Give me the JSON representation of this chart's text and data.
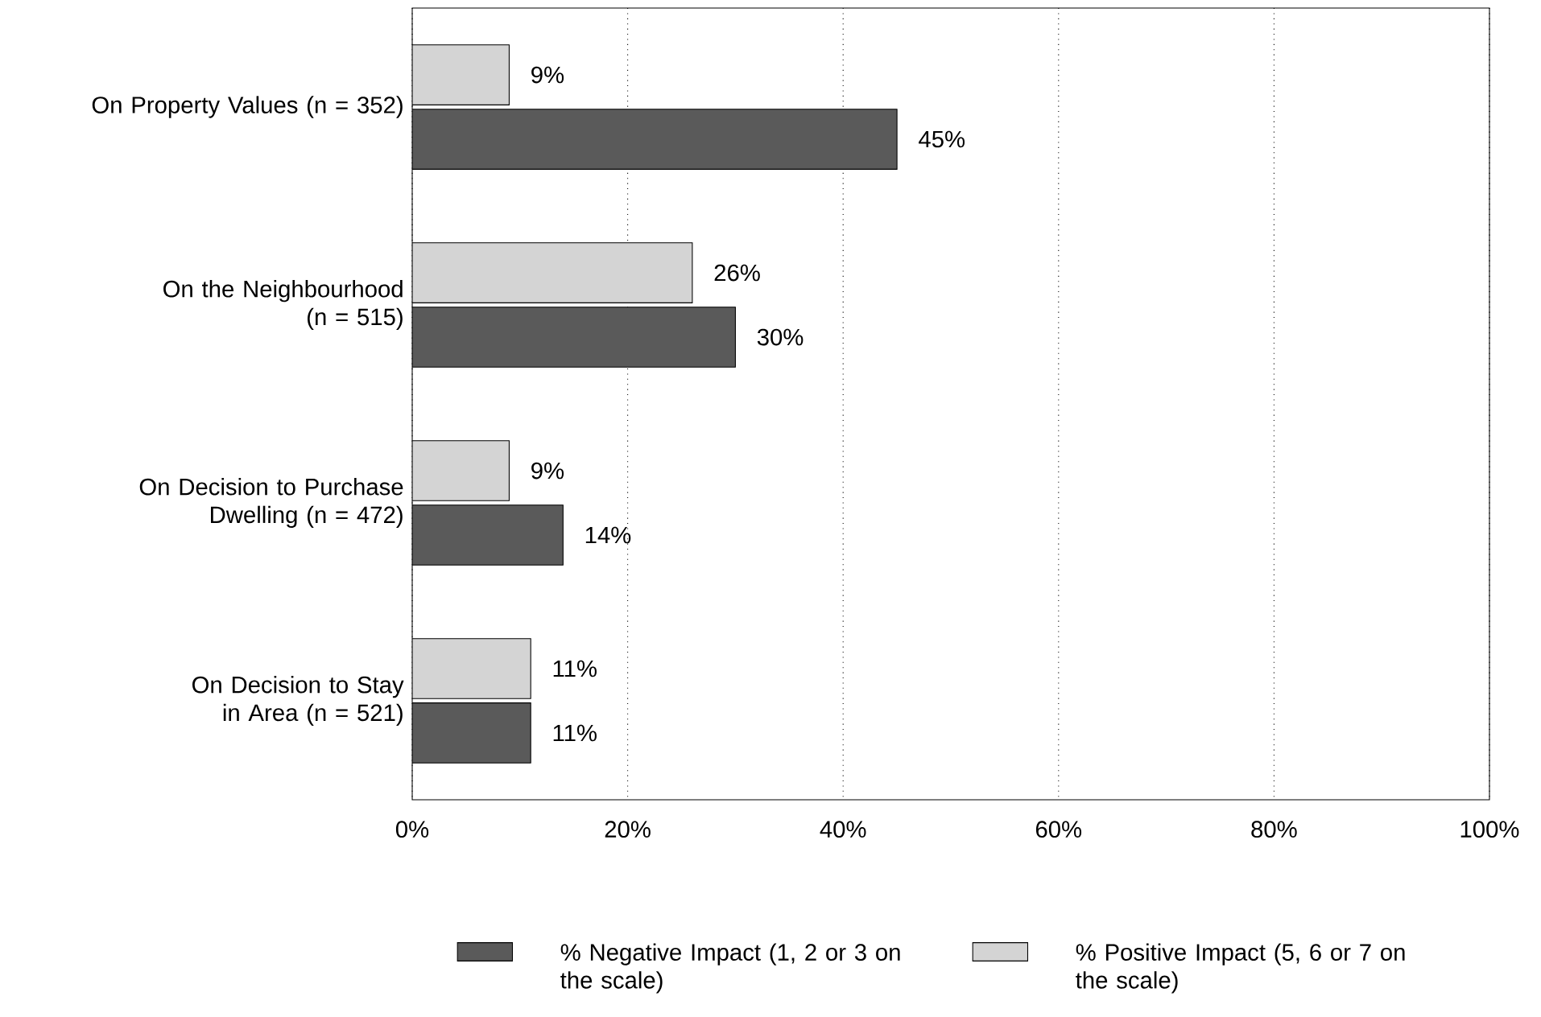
{
  "chart_data": {
    "type": "bar",
    "orientation": "horizontal",
    "categories": [
      "On Property Values (n = 352)",
      "On the Neighbourhood (n = 515)",
      "On Decision to Purchase Dwelling (n = 472)",
      "On Decision to Stay in Area (n = 521)"
    ],
    "series": [
      {
        "name": "% Negative Impact (1, 2 or 3 on the scale)",
        "color": "#5a5a5a",
        "values": [
          45,
          30,
          14,
          11
        ],
        "value_labels": [
          "45%",
          "30%",
          "14%",
          "11%"
        ]
      },
      {
        "name": "% Positive Impact (5, 6 or 7 on the scale)",
        "color": "#d4d4d4",
        "values": [
          9,
          26,
          9,
          11
        ],
        "value_labels": [
          "9%",
          "26%",
          "9%",
          "11%"
        ]
      }
    ],
    "xlim": [
      0,
      100
    ],
    "xticks": [
      {
        "value": 0,
        "label": "0%"
      },
      {
        "value": 20,
        "label": "20%"
      },
      {
        "value": 40,
        "label": "40%"
      },
      {
        "value": 60,
        "label": "60%"
      },
      {
        "value": 80,
        "label": "80%"
      },
      {
        "value": 100,
        "label": "100%"
      }
    ],
    "grid": "x",
    "legend": "bottom"
  }
}
